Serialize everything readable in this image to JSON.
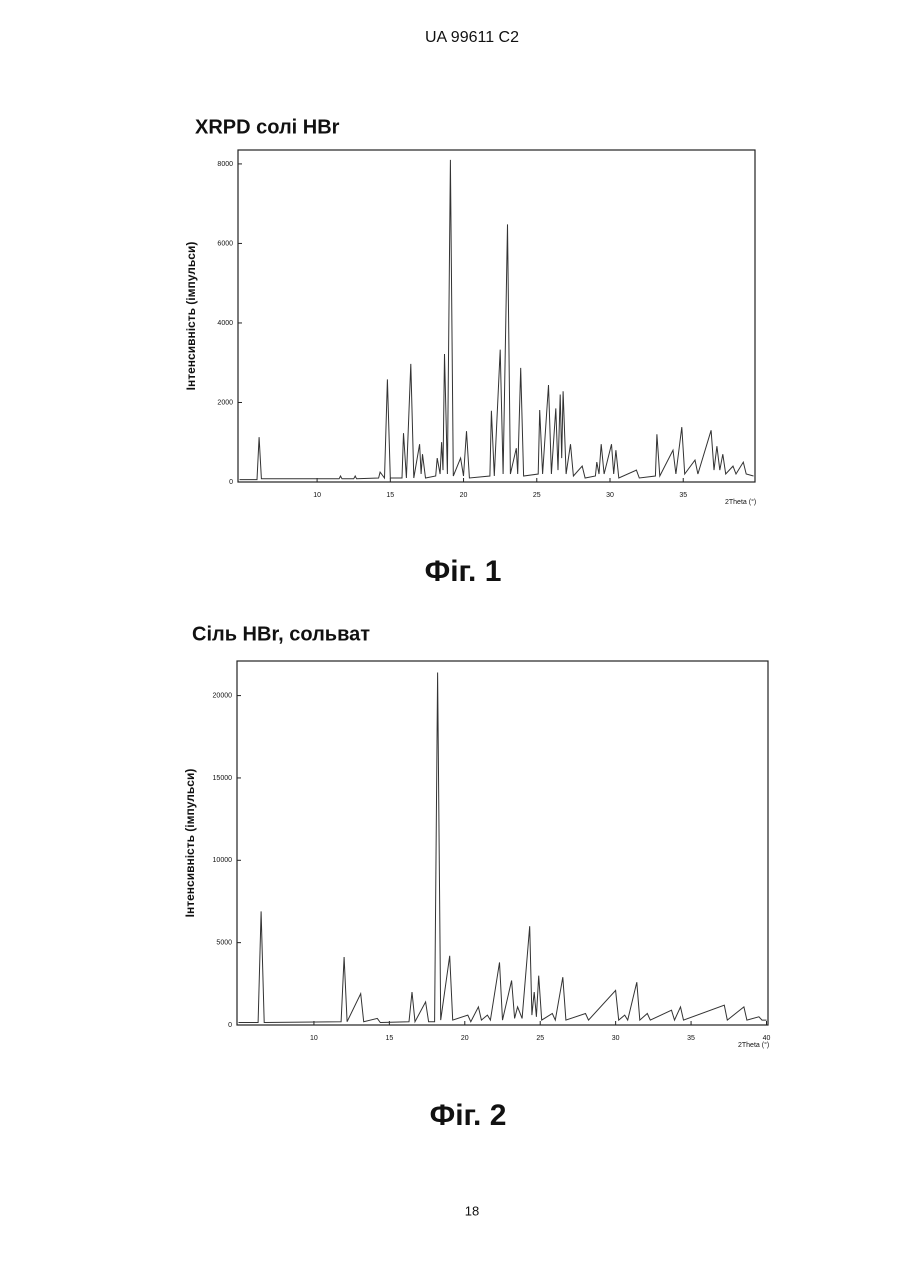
{
  "header": "UA   99611   C2",
  "page_number": "18",
  "chart_data": [
    {
      "type": "line",
      "title": "XRPD солі HBr",
      "caption": "Фіг. 1",
      "y_label": "Інтенсивність (імпульси)",
      "x_label": "2Theta (°)",
      "xlim": [
        4.6,
        39.9
      ],
      "xticks": [
        10,
        15,
        20,
        25,
        30,
        35
      ],
      "ylim": [
        0,
        8350
      ],
      "yticks": [
        0,
        2000,
        4000,
        6000,
        8000
      ],
      "color": "#333333",
      "x": [
        4.7,
        5.9,
        6.04,
        6.2,
        11.5,
        11.6,
        11.7,
        12.5,
        12.6,
        12.7,
        14.2,
        14.3,
        14.6,
        14.8,
        15.0,
        15.8,
        15.9,
        16.1,
        16.4,
        16.6,
        17.0,
        17.1,
        17.2,
        17.4,
        18.1,
        18.2,
        18.4,
        18.5,
        18.6,
        18.7,
        18.9,
        19.1,
        19.3,
        19.8,
        20.0,
        20.2,
        20.4,
        21.8,
        21.9,
        22.1,
        22.5,
        22.7,
        23.0,
        23.2,
        23.6,
        23.7,
        23.9,
        24.1,
        25.1,
        25.2,
        25.4,
        25.8,
        26.0,
        26.3,
        26.45,
        26.6,
        26.7,
        26.8,
        27.0,
        27.3,
        27.5,
        28.1,
        28.3,
        29.0,
        29.1,
        29.25,
        29.4,
        29.6,
        30.1,
        30.25,
        30.4,
        30.6,
        31.8,
        32.0,
        33.1,
        33.2,
        33.4,
        34.3,
        34.5,
        34.9,
        35.1,
        35.8,
        36.0,
        36.9,
        37.1,
        37.3,
        37.5,
        37.7,
        37.9,
        38.4,
        38.6,
        39.1,
        39.3,
        39.8
      ],
      "values": [
        60,
        60,
        1130,
        80,
        80,
        150,
        80,
        80,
        150,
        80,
        100,
        250,
        100,
        2580,
        100,
        100,
        1230,
        100,
        2970,
        100,
        950,
        200,
        700,
        100,
        150,
        600,
        200,
        1000,
        300,
        3220,
        200,
        8100,
        150,
        600,
        150,
        1280,
        100,
        150,
        1790,
        150,
        3330,
        200,
        6480,
        200,
        850,
        200,
        2870,
        150,
        200,
        1810,
        200,
        2440,
        200,
        1850,
        300,
        2200,
        600,
        2280,
        200,
        950,
        150,
        400,
        100,
        150,
        500,
        200,
        950,
        200,
        950,
        200,
        800,
        100,
        300,
        100,
        150,
        1200,
        150,
        800,
        200,
        1380,
        200,
        550,
        200,
        1300,
        300,
        900,
        300,
        700,
        200,
        400,
        200,
        500,
        200,
        150
      ]
    },
    {
      "type": "line",
      "title": "Сіль HBr, сольват",
      "caption": "Фіг. 2",
      "y_label": "Інтенсивність (імпульси)",
      "x_label": "2Theta (°)",
      "xlim": [
        4.9,
        40.1
      ],
      "xticks": [
        10,
        15,
        20,
        25,
        30,
        35,
        40
      ],
      "ylim": [
        0,
        22100
      ],
      "yticks": [
        0,
        5000,
        10000,
        15000,
        20000
      ],
      "color": "#333333",
      "x": [
        5.0,
        6.3,
        6.5,
        6.7,
        11.8,
        12.0,
        12.2,
        13.1,
        13.3,
        14.2,
        14.4,
        16.3,
        16.5,
        16.7,
        17.4,
        17.6,
        18.0,
        18.2,
        18.4,
        19.0,
        19.2,
        20.2,
        20.4,
        20.9,
        21.1,
        21.5,
        21.7,
        22.3,
        22.5,
        23.1,
        23.3,
        23.5,
        23.8,
        24.3,
        24.45,
        24.6,
        24.75,
        24.9,
        25.1,
        25.8,
        26.0,
        26.5,
        26.7,
        28.0,
        28.2,
        30.0,
        30.2,
        30.6,
        30.8,
        31.4,
        31.6,
        32.1,
        32.3,
        33.7,
        33.9,
        34.3,
        34.5,
        37.2,
        37.4,
        38.5,
        38.7,
        39.5,
        39.7,
        40.0
      ],
      "values": [
        150,
        150,
        6900,
        150,
        200,
        4130,
        200,
        1900,
        200,
        400,
        150,
        200,
        2000,
        200,
        1400,
        200,
        200,
        21400,
        300,
        4200,
        300,
        600,
        200,
        1100,
        300,
        600,
        300,
        3800,
        300,
        2700,
        400,
        1100,
        400,
        6000,
        600,
        2000,
        500,
        3000,
        300,
        700,
        300,
        2900,
        300,
        700,
        300,
        2100,
        300,
        600,
        300,
        2600,
        300,
        700,
        300,
        900,
        300,
        1100,
        300,
        1200,
        300,
        1100,
        300,
        500,
        300,
        300
      ]
    }
  ]
}
